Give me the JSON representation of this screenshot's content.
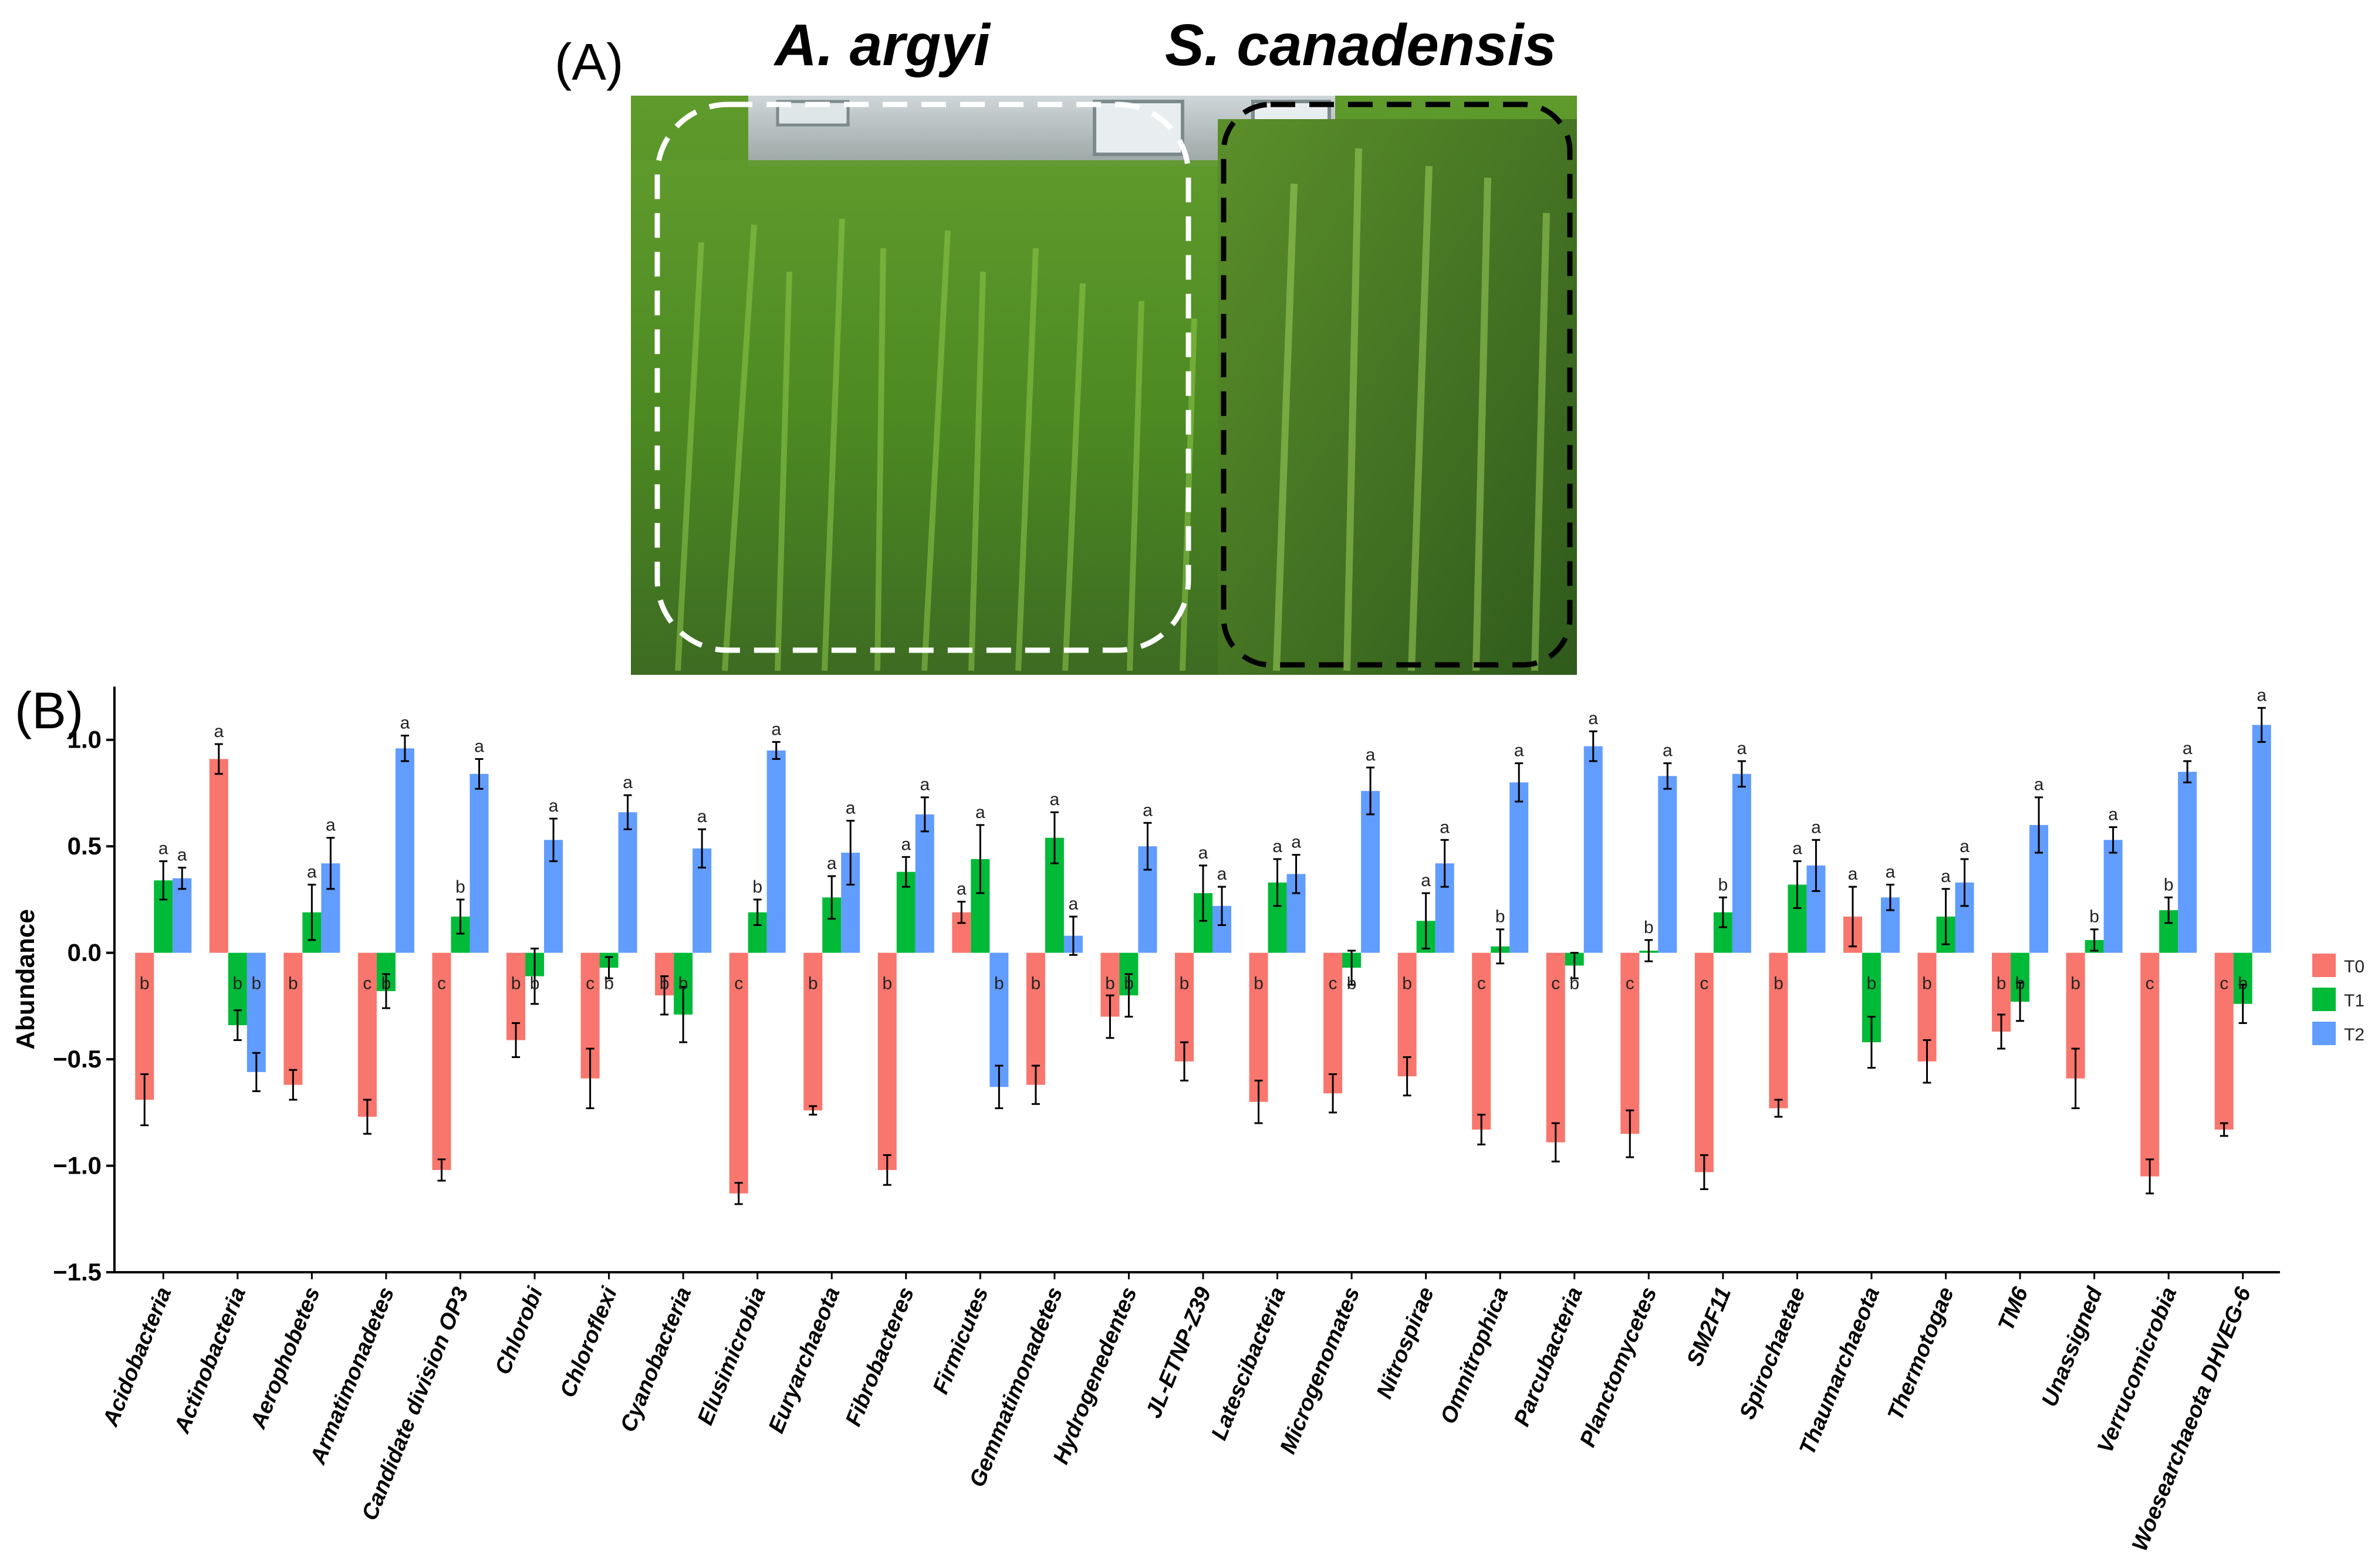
{
  "panel_a": {
    "label": "(A)",
    "left_species": "A. argyi",
    "right_species": "S. canadensis"
  },
  "panel_b": {
    "label": "(B)"
  },
  "colors": {
    "T0": "#F8766D",
    "T1": "#00BA38",
    "T2": "#619CFF"
  },
  "chart_data": {
    "type": "bar",
    "ylabel": "Abundance",
    "xlabel": "",
    "ylim": [
      -1.5,
      1.25
    ],
    "yticks": [
      1.0,
      0.5,
      0.0,
      -0.5,
      -1.0,
      -1.5
    ],
    "ytick_labels": [
      "1.0",
      "0.5",
      "0.0",
      "−0.5",
      "−1.0",
      "−1.5"
    ],
    "grid": false,
    "legend_position": "right",
    "categories": [
      "Acidobacteria",
      "Actinobacteria",
      "Aerophobetes",
      "Armatimonadetes",
      "Candidate division OP3",
      "Chlorobi",
      "Chloroflexi",
      "Cyanobacteria",
      "Elusimicrobia",
      "Euryarchaeota",
      "Fibrobacteres",
      "Firmicutes",
      "Gemmatimonadetes",
      "Hydrogenedentes",
      "JL-ETNP-Z39",
      "Latescibacteria",
      "Microgenomates",
      "Nitrospirae",
      "Omnitrophica",
      "Parcubacteria",
      "Planctomycetes",
      "SM2F11",
      "Spirochaetae",
      "Thaumarchaeota",
      "Thermotogae",
      "TM6",
      "Unassigned",
      "Verrucomicrobia",
      "Woesearchaeota DHVEG-6"
    ],
    "series": [
      {
        "name": "T0",
        "values": [
          -0.69,
          0.91,
          -0.62,
          -0.77,
          -1.02,
          -0.41,
          -0.59,
          -0.2,
          -1.13,
          -0.74,
          -1.02,
          0.19,
          -0.62,
          -0.3,
          -0.51,
          -0.7,
          -0.66,
          -0.58,
          -0.83,
          -0.89,
          -0.85,
          -1.03,
          -0.73,
          0.17,
          -0.51,
          -0.37,
          -0.59,
          -1.05,
          -0.83
        ],
        "errors": [
          0.12,
          0.07,
          0.07,
          0.08,
          0.05,
          0.08,
          0.14,
          0.09,
          0.05,
          0.02,
          0.07,
          0.05,
          0.09,
          0.1,
          0.09,
          0.1,
          0.09,
          0.09,
          0.07,
          0.09,
          0.11,
          0.08,
          0.04,
          0.14,
          0.1,
          0.08,
          0.14,
          0.08,
          0.03
        ],
        "letters": [
          "b",
          "a",
          "b",
          "c",
          "c",
          "b",
          "c",
          "b",
          "c",
          "b",
          "b",
          "a",
          "b",
          "b",
          "b",
          "b",
          "c",
          "b",
          "c",
          "c",
          "c",
          "c",
          "b",
          "a",
          "b",
          "b",
          "b",
          "c",
          "c"
        ]
      },
      {
        "name": "T1",
        "values": [
          0.34,
          -0.34,
          0.19,
          -0.18,
          0.17,
          -0.11,
          -0.07,
          -0.29,
          0.19,
          0.26,
          0.38,
          0.44,
          0.54,
          -0.2,
          0.28,
          0.33,
          -0.07,
          0.15,
          0.03,
          -0.06,
          0.01,
          0.19,
          0.32,
          -0.42,
          0.17,
          -0.23,
          0.06,
          0.2,
          -0.24
        ],
        "errors": [
          0.09,
          0.07,
          0.13,
          0.08,
          0.08,
          0.13,
          0.05,
          0.13,
          0.06,
          0.1,
          0.07,
          0.16,
          0.12,
          0.1,
          0.13,
          0.11,
          0.08,
          0.13,
          0.08,
          0.06,
          0.05,
          0.07,
          0.11,
          0.12,
          0.13,
          0.09,
          0.05,
          0.06,
          0.09
        ],
        "letters": [
          "a",
          "b",
          "a",
          "b",
          "b",
          "b",
          "b",
          "b",
          "b",
          "a",
          "a",
          "a",
          "a",
          "b",
          "a",
          "a",
          "b",
          "a",
          "b",
          "b",
          "b",
          "b",
          "a",
          "b",
          "a",
          "b",
          "b",
          "b",
          "b"
        ]
      },
      {
        "name": "T2",
        "values": [
          0.35,
          -0.56,
          0.42,
          0.96,
          0.84,
          0.53,
          0.66,
          0.49,
          0.95,
          0.47,
          0.65,
          -0.63,
          0.08,
          0.5,
          0.22,
          0.37,
          0.76,
          0.42,
          0.8,
          0.97,
          0.83,
          0.84,
          0.41,
          0.26,
          0.33,
          0.6,
          0.53,
          0.85,
          1.07
        ],
        "errors": [
          0.05,
          0.09,
          0.12,
          0.06,
          0.07,
          0.1,
          0.08,
          0.09,
          0.04,
          0.15,
          0.08,
          0.1,
          0.09,
          0.11,
          0.09,
          0.09,
          0.11,
          0.11,
          0.09,
          0.07,
          0.06,
          0.06,
          0.12,
          0.06,
          0.11,
          0.13,
          0.06,
          0.05,
          0.08
        ],
        "letters": [
          "a",
          "b",
          "a",
          "a",
          "a",
          "a",
          "a",
          "a",
          "a",
          "a",
          "a",
          "b",
          "a",
          "a",
          "a",
          "a",
          "a",
          "a",
          "a",
          "a",
          "a",
          "a",
          "a",
          "a",
          "a",
          "a",
          "a",
          "a",
          "a"
        ]
      }
    ]
  }
}
